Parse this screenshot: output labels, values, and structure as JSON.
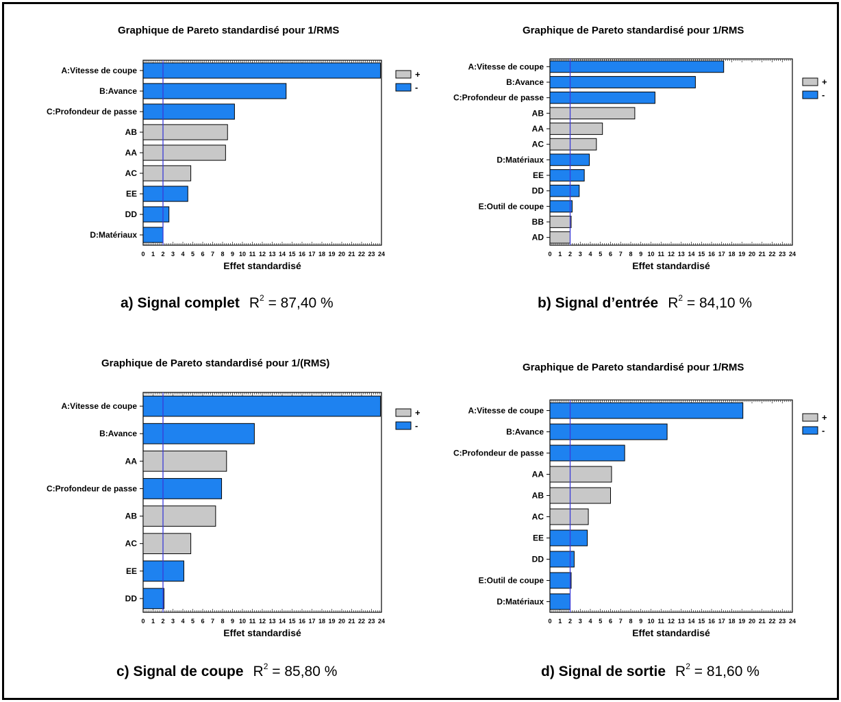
{
  "colors": {
    "positive": "#c8c8c8",
    "negative": "#1e82f0",
    "reference_line": "#3a3ad8",
    "bar_border": "#000000"
  },
  "chart_data": [
    {
      "type": "bar",
      "orientation": "horizontal",
      "title": "Graphique de Pareto standardisé pour 1/RMS",
      "xlabel": "Effet standardisé",
      "xlim": [
        0,
        24
      ],
      "xticks": [
        "0",
        "1",
        "2",
        "3",
        "4",
        "5",
        "6",
        "7",
        "8",
        "9",
        "10",
        "11",
        "12",
        "13",
        "14",
        "15",
        "16",
        "17",
        "18",
        "19",
        "20",
        "21",
        "22",
        "23",
        "24"
      ],
      "reference_line": 2,
      "legend": {
        "placement": "right",
        "entries": [
          {
            "label": "+",
            "sign": "positive"
          },
          {
            "label": "-",
            "sign": "negative"
          }
        ]
      },
      "categories": [
        "A:Vitesse de coupe",
        "B:Avance",
        "C:Profondeur de passe",
        "AB",
        "AA",
        "AC",
        "EE",
        "DD",
        "D:Matériaux"
      ],
      "values": [
        23.9,
        14.4,
        9.2,
        8.5,
        8.3,
        4.8,
        4.5,
        2.6,
        2.0
      ],
      "signs": [
        "negative",
        "negative",
        "negative",
        "positive",
        "positive",
        "positive",
        "negative",
        "negative",
        "negative"
      ],
      "caption": {
        "label": "a) Signal complet",
        "r2_text": "R",
        "r2_sup": "2",
        "r2_value": " = 87,40 %"
      }
    },
    {
      "type": "bar",
      "orientation": "horizontal",
      "title": "Graphique de Pareto standardisé pour 1/RMS",
      "xlabel": "Effet standardisé",
      "xlim": [
        0,
        24
      ],
      "xticks": [
        "0",
        "1",
        "2",
        "3",
        "4",
        "5",
        "6",
        "7",
        "8",
        "9",
        "10",
        "11",
        "12",
        "13",
        "14",
        "15",
        "16",
        "17",
        "18",
        "19",
        "20",
        "21",
        "22",
        "23",
        "24"
      ],
      "reference_line": 2,
      "legend": {
        "placement": "right",
        "entries": [
          {
            "label": "+",
            "sign": "positive"
          },
          {
            "label": "-",
            "sign": "negative"
          }
        ]
      },
      "categories": [
        "A:Vitesse de coupe",
        "B:Avance",
        "C:Profondeur de passe",
        "AB",
        "AA",
        "AC",
        "D:Matériaux",
        "EE",
        "DD",
        "E:Outil de coupe",
        "BB",
        "AD"
      ],
      "values": [
        17.2,
        14.4,
        10.4,
        8.4,
        5.2,
        4.6,
        3.9,
        3.4,
        2.9,
        2.2,
        2.1,
        2.0
      ],
      "signs": [
        "negative",
        "negative",
        "negative",
        "positive",
        "positive",
        "positive",
        "negative",
        "negative",
        "negative",
        "negative",
        "positive",
        "positive"
      ],
      "caption": {
        "label": "b) Signal d’entrée",
        "r2_text": "R",
        "r2_sup": "2",
        "r2_value": " = 84,10 %"
      }
    },
    {
      "type": "bar",
      "orientation": "horizontal",
      "title": "Graphique de Pareto standardisé pour 1/(RMS)",
      "xlabel": "Effet standardisé",
      "xlim": [
        0,
        24
      ],
      "xticks": [
        "0",
        "1",
        "2",
        "3",
        "4",
        "5",
        "6",
        "7",
        "8",
        "9",
        "10",
        "11",
        "12",
        "13",
        "14",
        "15",
        "16",
        "17",
        "18",
        "19",
        "20",
        "21",
        "22",
        "23",
        "24"
      ],
      "reference_line": 2,
      "legend": {
        "placement": "right",
        "entries": [
          {
            "label": "+",
            "sign": "positive"
          },
          {
            "label": "-",
            "sign": "negative"
          }
        ]
      },
      "categories": [
        "A:Vitesse de coupe",
        "B:Avance",
        "AA",
        "C:Profondeur de passe",
        "AB",
        "AC",
        "EE",
        "DD"
      ],
      "values": [
        23.9,
        11.2,
        8.4,
        7.9,
        7.3,
        4.8,
        4.1,
        2.1
      ],
      "signs": [
        "negative",
        "negative",
        "positive",
        "negative",
        "positive",
        "positive",
        "negative",
        "negative"
      ],
      "caption": {
        "label": "c) Signal de coupe",
        "r2_text": "R",
        "r2_sup": "2",
        "r2_value": " = 85,80 %"
      }
    },
    {
      "type": "bar",
      "orientation": "horizontal",
      "title": "Graphique de Pareto standardisé pour 1/RMS",
      "xlabel": "Effet standardisé",
      "xlim": [
        0,
        24
      ],
      "xticks": [
        "0",
        "1",
        "2",
        "3",
        "4",
        "5",
        "6",
        "7",
        "8",
        "9",
        "10",
        "11",
        "12",
        "13",
        "14",
        "15",
        "16",
        "17",
        "18",
        "19",
        "20",
        "21",
        "22",
        "23",
        "24"
      ],
      "reference_line": 2,
      "legend": {
        "placement": "right",
        "entries": [
          {
            "label": "+",
            "sign": "positive"
          },
          {
            "label": "-",
            "sign": "negative"
          }
        ]
      },
      "categories": [
        "A:Vitesse de coupe",
        "B:Avance",
        "C:Profondeur de passe",
        "AA",
        "AB",
        "AC",
        "EE",
        "DD",
        "E:Outil de coupe",
        "D:Matériaux"
      ],
      "values": [
        19.1,
        11.6,
        7.4,
        6.1,
        6.0,
        3.8,
        3.7,
        2.4,
        2.1,
        2.0
      ],
      "signs": [
        "negative",
        "negative",
        "negative",
        "positive",
        "positive",
        "positive",
        "negative",
        "negative",
        "negative",
        "negative"
      ],
      "caption": {
        "label": "d) Signal de sortie",
        "r2_text": "R",
        "r2_sup": "2",
        "r2_value": " = 81,60 %"
      }
    }
  ]
}
